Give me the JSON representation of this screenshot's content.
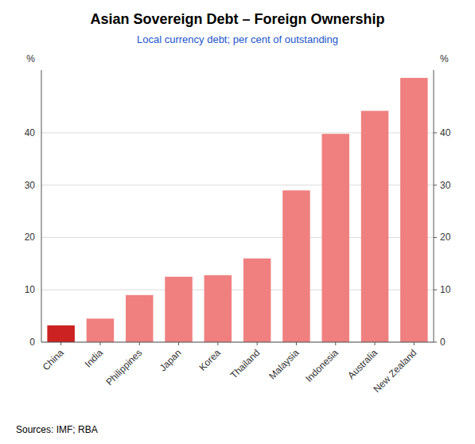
{
  "chart_data": {
    "type": "bar",
    "title": "Asian Sovereign Debt – Foreign Ownership",
    "subtitle": "Local currency debt; per cent of outstanding",
    "categories": [
      "China",
      "India",
      "Philippines",
      "Japan",
      "Korea",
      "Thailand",
      "Malaysia",
      "Indonesia",
      "Australia",
      "New Zealand"
    ],
    "values": [
      3.2,
      4.5,
      9.0,
      12.5,
      12.8,
      16.0,
      29.0,
      39.8,
      44.2,
      50.5
    ],
    "colors": [
      "#CC2222",
      "#F08080",
      "#F08080",
      "#F08080",
      "#F08080",
      "#F08080",
      "#F08080",
      "#F08080",
      "#F08080",
      "#F08080"
    ],
    "ylabel": "%",
    "y2label": "%",
    "ylim": [
      0,
      52
    ],
    "yticks": [
      0,
      10,
      20,
      30,
      40
    ],
    "y2lim": [
      0,
      52
    ],
    "y2ticks": [
      0,
      10,
      20,
      30,
      40
    ],
    "grid": true,
    "source": "Sources:  IMF; RBA"
  }
}
